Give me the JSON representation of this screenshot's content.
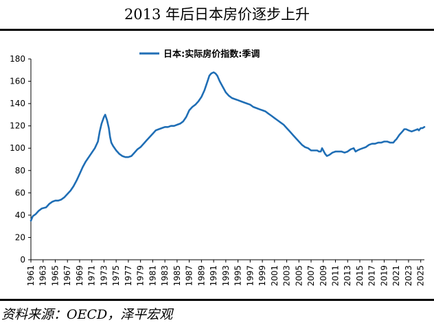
{
  "title": "2013 年后日本房价逐步上升",
  "source": "资料来源：OECD，泽平宏观",
  "chart_data": {
    "type": "line",
    "series": [
      {
        "name": "日本:实际房价指数:季调",
        "color": "#1f6eb5",
        "points": [
          [
            1961.0,
            35
          ],
          [
            1961.3,
            39
          ],
          [
            1961.8,
            41
          ],
          [
            1962.3,
            44
          ],
          [
            1962.8,
            46
          ],
          [
            1963.5,
            47
          ],
          [
            1964.0,
            50
          ],
          [
            1964.5,
            52
          ],
          [
            1965.0,
            53
          ],
          [
            1965.5,
            53
          ],
          [
            1966.0,
            54
          ],
          [
            1966.5,
            56
          ],
          [
            1967.0,
            59
          ],
          [
            1967.5,
            62
          ],
          [
            1968.0,
            66
          ],
          [
            1968.5,
            71
          ],
          [
            1969.0,
            77
          ],
          [
            1969.5,
            83
          ],
          [
            1970.0,
            88
          ],
          [
            1970.5,
            92
          ],
          [
            1971.0,
            96
          ],
          [
            1971.5,
            100
          ],
          [
            1972.0,
            106
          ],
          [
            1972.3,
            115
          ],
          [
            1972.6,
            122
          ],
          [
            1973.0,
            128
          ],
          [
            1973.2,
            130
          ],
          [
            1973.5,
            125
          ],
          [
            1973.8,
            118
          ],
          [
            1974.0,
            110
          ],
          [
            1974.2,
            105
          ],
          [
            1974.5,
            102
          ],
          [
            1975.0,
            98
          ],
          [
            1975.5,
            95
          ],
          [
            1976.0,
            93
          ],
          [
            1976.5,
            92
          ],
          [
            1977.0,
            92
          ],
          [
            1977.5,
            93
          ],
          [
            1978.0,
            96
          ],
          [
            1978.5,
            99
          ],
          [
            1979.0,
            101
          ],
          [
            1979.5,
            104
          ],
          [
            1980.0,
            107
          ],
          [
            1980.5,
            110
          ],
          [
            1981.0,
            113
          ],
          [
            1981.5,
            116
          ],
          [
            1982.0,
            117
          ],
          [
            1982.5,
            118
          ],
          [
            1983.0,
            119
          ],
          [
            1983.5,
            119
          ],
          [
            1984.0,
            120
          ],
          [
            1984.5,
            120
          ],
          [
            1985.0,
            121
          ],
          [
            1985.5,
            122
          ],
          [
            1986.0,
            124
          ],
          [
            1986.5,
            128
          ],
          [
            1987.0,
            134
          ],
          [
            1987.5,
            137
          ],
          [
            1988.0,
            139
          ],
          [
            1988.5,
            142
          ],
          [
            1989.0,
            146
          ],
          [
            1989.5,
            152
          ],
          [
            1990.0,
            160
          ],
          [
            1990.3,
            165
          ],
          [
            1990.6,
            167
          ],
          [
            1991.0,
            168
          ],
          [
            1991.3,
            167
          ],
          [
            1991.6,
            165
          ],
          [
            1992.0,
            160
          ],
          [
            1992.5,
            155
          ],
          [
            1993.0,
            150
          ],
          [
            1993.5,
            147
          ],
          [
            1994.0,
            145
          ],
          [
            1994.5,
            144
          ],
          [
            1995.0,
            143
          ],
          [
            1995.5,
            142
          ],
          [
            1996.0,
            141
          ],
          [
            1996.5,
            140
          ],
          [
            1997.0,
            139
          ],
          [
            1997.5,
            137
          ],
          [
            1998.0,
            136
          ],
          [
            1998.5,
            135
          ],
          [
            1999.0,
            134
          ],
          [
            1999.5,
            133
          ],
          [
            2000.0,
            131
          ],
          [
            2000.5,
            129
          ],
          [
            2001.0,
            127
          ],
          [
            2001.5,
            125
          ],
          [
            2002.0,
            123
          ],
          [
            2002.5,
            121
          ],
          [
            2003.0,
            118
          ],
          [
            2003.5,
            115
          ],
          [
            2004.0,
            112
          ],
          [
            2004.5,
            109
          ],
          [
            2005.0,
            106
          ],
          [
            2005.5,
            103
          ],
          [
            2006.0,
            101
          ],
          [
            2006.5,
            100
          ],
          [
            2007.0,
            98
          ],
          [
            2007.5,
            98
          ],
          [
            2008.0,
            98
          ],
          [
            2008.3,
            97
          ],
          [
            2008.6,
            97
          ],
          [
            2008.8,
            100
          ],
          [
            2009.0,
            98
          ],
          [
            2009.3,
            95
          ],
          [
            2009.6,
            93
          ],
          [
            2010.0,
            94
          ],
          [
            2010.5,
            96
          ],
          [
            2011.0,
            97
          ],
          [
            2011.5,
            97
          ],
          [
            2012.0,
            97
          ],
          [
            2012.5,
            96
          ],
          [
            2013.0,
            97
          ],
          [
            2013.5,
            99
          ],
          [
            2014.0,
            100
          ],
          [
            2014.3,
            97
          ],
          [
            2014.6,
            98
          ],
          [
            2015.0,
            99
          ],
          [
            2015.5,
            100
          ],
          [
            2016.0,
            101
          ],
          [
            2016.5,
            103
          ],
          [
            2017.0,
            104
          ],
          [
            2017.5,
            104
          ],
          [
            2018.0,
            105
          ],
          [
            2018.5,
            105
          ],
          [
            2019.0,
            106
          ],
          [
            2019.5,
            106
          ],
          [
            2020.0,
            105
          ],
          [
            2020.5,
            105
          ],
          [
            2020.8,
            107
          ],
          [
            2021.0,
            108
          ],
          [
            2021.5,
            112
          ],
          [
            2022.0,
            115
          ],
          [
            2022.3,
            117
          ],
          [
            2022.6,
            117
          ],
          [
            2023.0,
            116
          ],
          [
            2023.5,
            115
          ],
          [
            2024.0,
            116
          ],
          [
            2024.5,
            117
          ],
          [
            2024.7,
            116
          ],
          [
            2025.0,
            118
          ],
          [
            2025.3,
            118
          ],
          [
            2025.6,
            119
          ]
        ]
      }
    ],
    "x_ticks": [
      "1961",
      "1963",
      "1965",
      "1967",
      "1969",
      "1971",
      "1973",
      "1975",
      "1977",
      "1979",
      "1981",
      "1983",
      "1985",
      "1987",
      "1989",
      "1991",
      "1993",
      "1995",
      "1997",
      "1999",
      "2001",
      "2003",
      "2005",
      "2007",
      "2009",
      "2011",
      "2013",
      "2015",
      "2017",
      "2019",
      "2021",
      "2023",
      "2025"
    ],
    "y_ticks": [
      "0",
      "20",
      "40",
      "60",
      "80",
      "100",
      "120",
      "140",
      "160",
      "180"
    ],
    "xlim": [
      1961,
      2025.6
    ],
    "ylim": [
      0,
      180
    ],
    "grid": false,
    "legend_position": "top-center"
  }
}
